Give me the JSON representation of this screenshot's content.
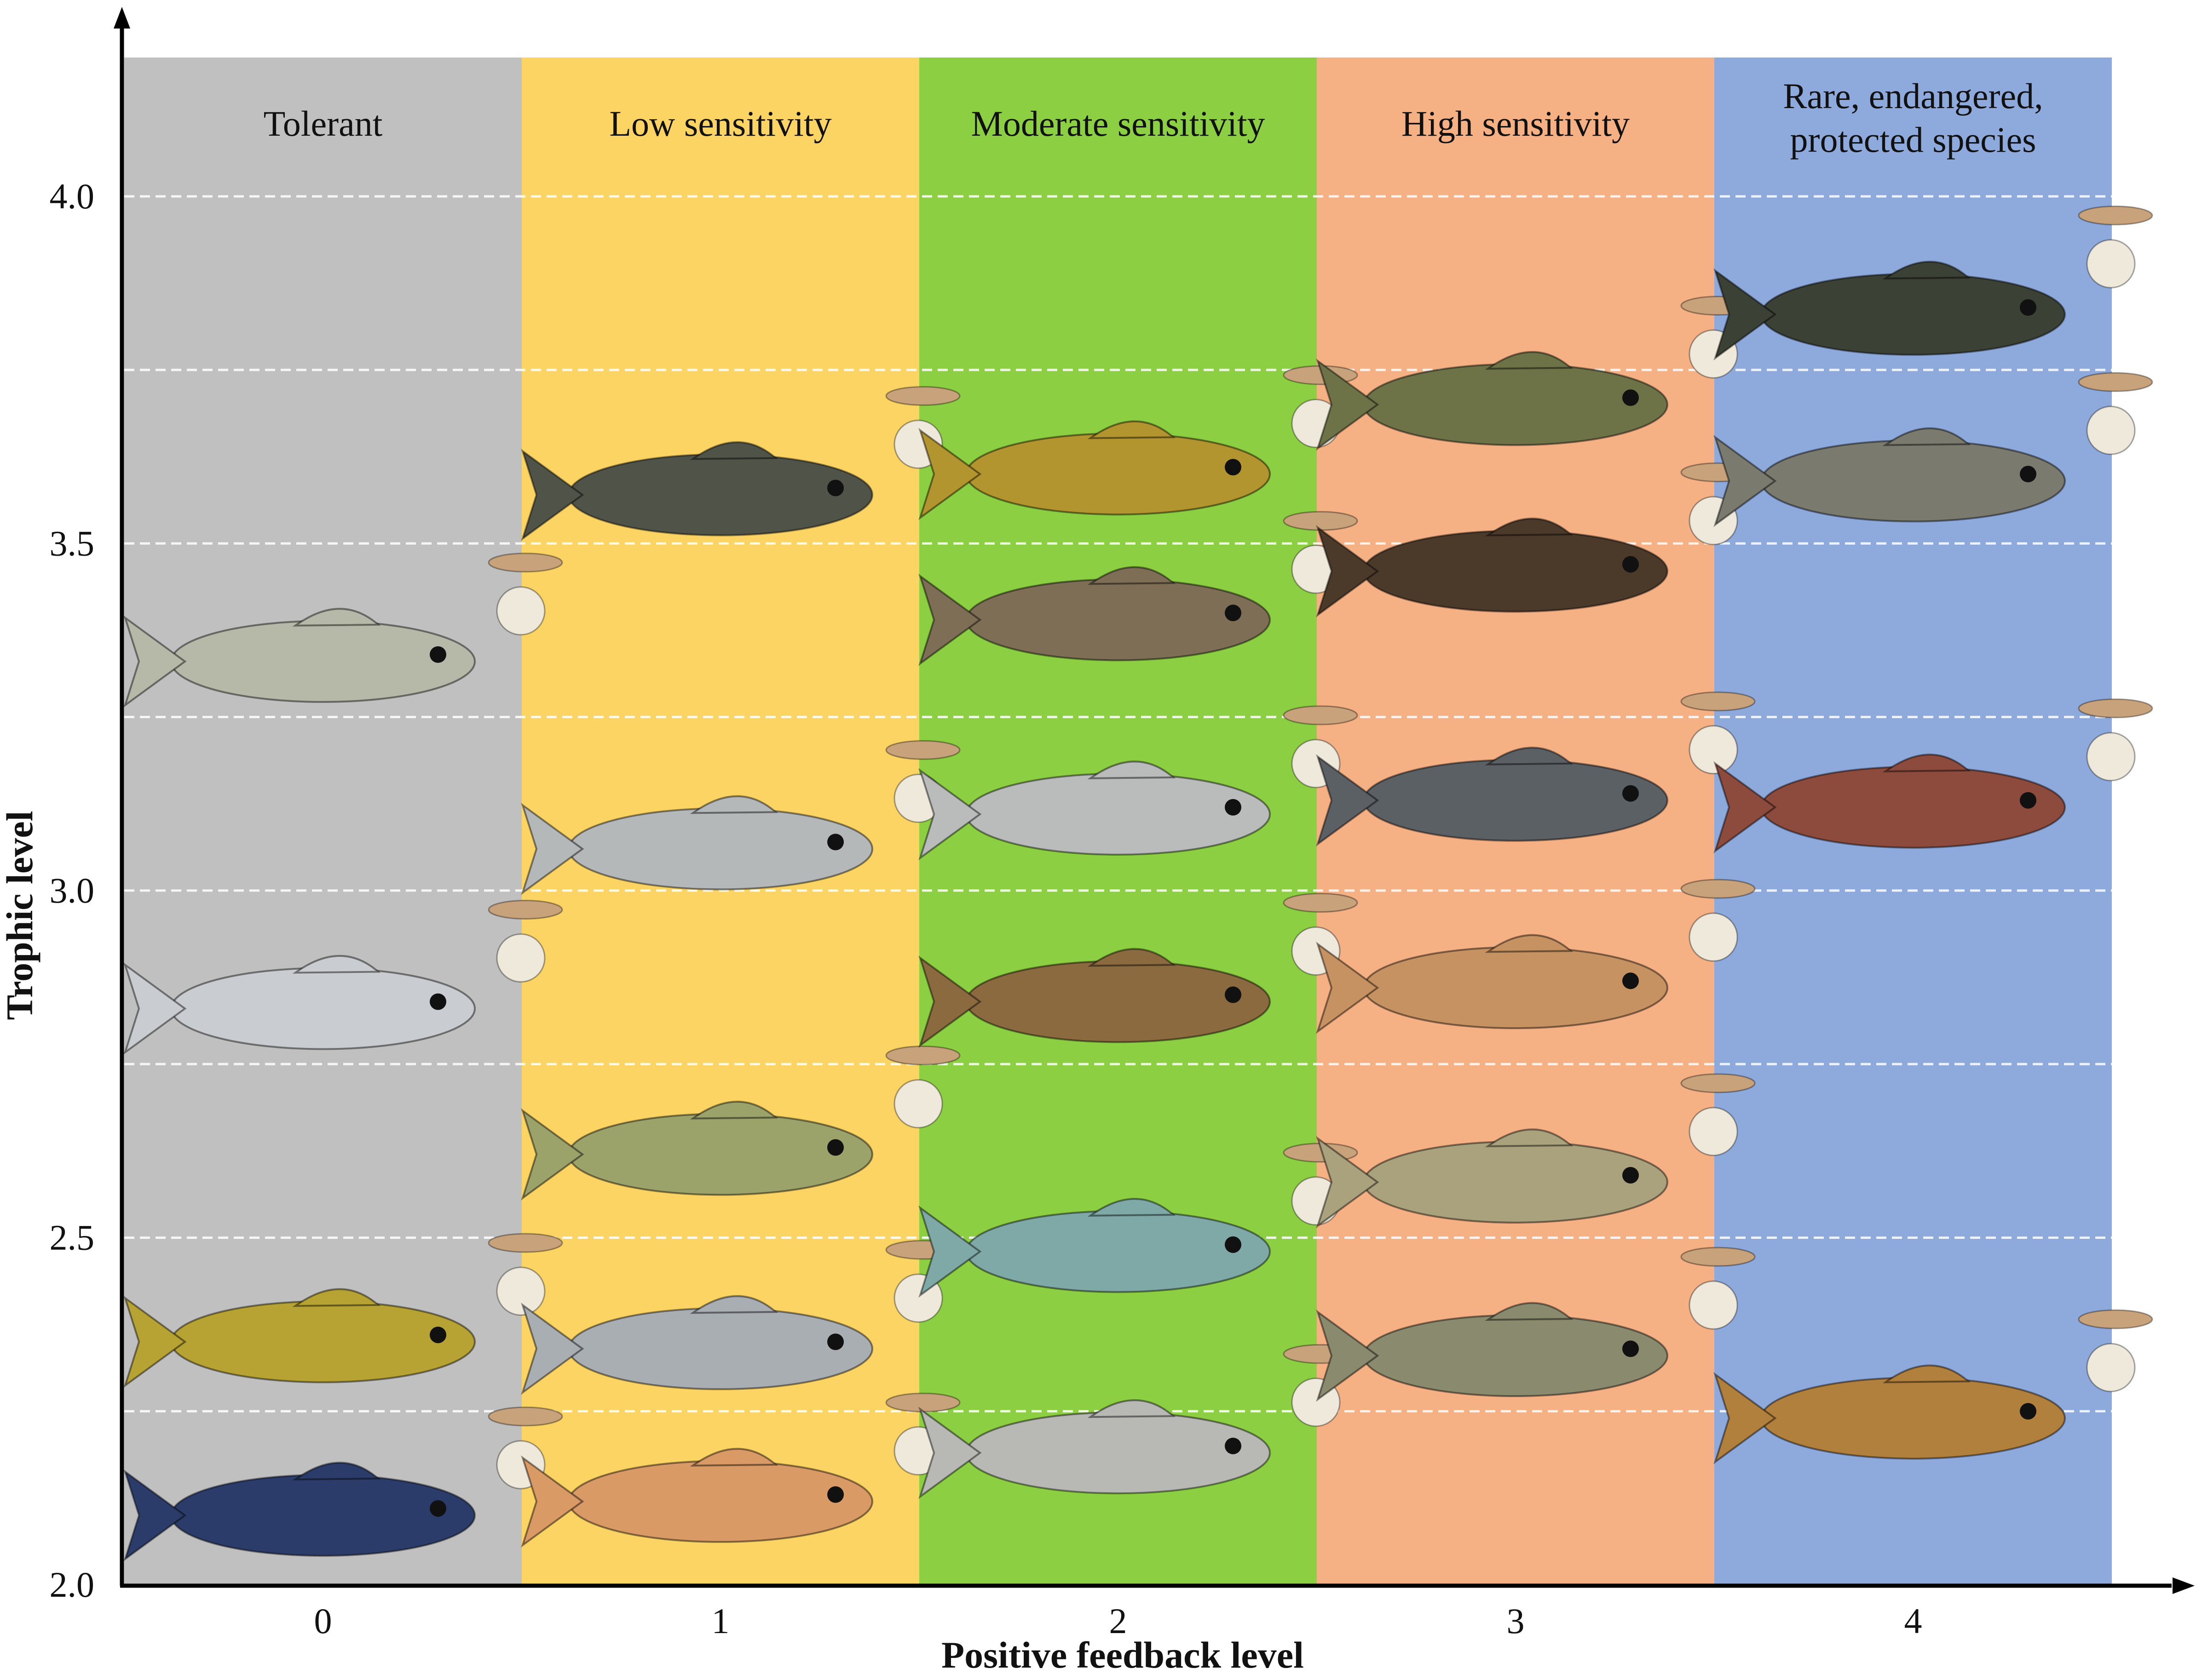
{
  "chart_data": {
    "type": "scatter",
    "xlabel": "Positive feedback level",
    "ylabel": "Trophic level",
    "xticks": [
      "0",
      "1",
      "2",
      "3",
      "4"
    ],
    "yticks": [
      "2.0",
      "2.5",
      "3.0",
      "3.5",
      "4.0"
    ],
    "ylim": [
      2.0,
      4.2
    ],
    "xlim": [
      -0.5,
      4.5
    ],
    "grid": "horizontal dashed white lines",
    "bands": [
      {
        "x": 0,
        "label": "Tolerant",
        "color": "#c0c0c0"
      },
      {
        "x": 1,
        "label": "Low sensitivity",
        "color": "#fbd464"
      },
      {
        "x": 2,
        "label": "Moderate sensitivity",
        "color": "#8ccf43"
      },
      {
        "x": 3,
        "label": "High sensitivity",
        "color": "#f5b083"
      },
      {
        "x": 4,
        "label": "Rare, endangered,\nprotected species",
        "color": "#8eaadd"
      }
    ],
    "gridlines_y": [
      2.25,
      2.5,
      2.75,
      3.0,
      3.25,
      3.5,
      3.75,
      4.0
    ],
    "points": [
      {
        "x": 0,
        "y": 2.1,
        "color": "#2c3c6a"
      },
      {
        "x": 0,
        "y": 2.35,
        "color": "#b7a234"
      },
      {
        "x": 0,
        "y": 2.83,
        "color": "#c9ccd0"
      },
      {
        "x": 0,
        "y": 3.33,
        "color": "#b7b9a8"
      },
      {
        "x": 1,
        "y": 2.12,
        "color": "#d99a66"
      },
      {
        "x": 1,
        "y": 2.34,
        "color": "#a9aeb3"
      },
      {
        "x": 1,
        "y": 2.62,
        "color": "#9ba26a"
      },
      {
        "x": 1,
        "y": 3.06,
        "color": "#b4b8b9"
      },
      {
        "x": 1,
        "y": 3.57,
        "color": "#4f5348"
      },
      {
        "x": 2,
        "y": 2.19,
        "color": "#b8b9b4"
      },
      {
        "x": 2,
        "y": 2.48,
        "color": "#7fa9a6"
      },
      {
        "x": 2,
        "y": 2.84,
        "color": "#8a6a3e"
      },
      {
        "x": 2,
        "y": 3.11,
        "color": "#b9bcbb"
      },
      {
        "x": 2,
        "y": 3.39,
        "color": "#7d6e55"
      },
      {
        "x": 2,
        "y": 3.6,
        "color": "#b3952f"
      },
      {
        "x": 3,
        "y": 2.33,
        "color": "#8a8a6e"
      },
      {
        "x": 3,
        "y": 2.58,
        "color": "#a9a27d"
      },
      {
        "x": 3,
        "y": 2.86,
        "color": "#c79261"
      },
      {
        "x": 3,
        "y": 3.13,
        "color": "#5b6064"
      },
      {
        "x": 3,
        "y": 3.46,
        "color": "#4b3a2a"
      },
      {
        "x": 3,
        "y": 3.7,
        "color": "#6d7347"
      },
      {
        "x": 4,
        "y": 2.24,
        "color": "#b2803d"
      },
      {
        "x": 4,
        "y": 3.12,
        "color": "#8c4b3c"
      },
      {
        "x": 4,
        "y": 3.59,
        "color": "#7a7a6f"
      },
      {
        "x": 4,
        "y": 3.83,
        "color": "#3b4134"
      }
    ]
  }
}
